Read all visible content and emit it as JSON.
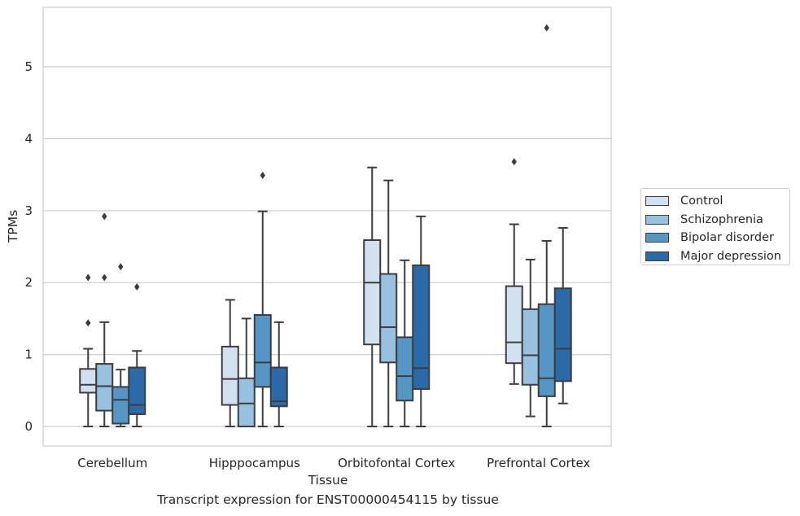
{
  "chart_data": {
    "type": "box",
    "xlabel": "Tissue",
    "ylabel": "TPMs",
    "ylim": [
      -0.27,
      5.85
    ],
    "yticks": [
      0,
      1,
      2,
      3,
      4,
      5
    ],
    "grid": "horizontal",
    "legend_position": "outside-right",
    "categories": [
      "Cerebellum",
      "Hipppocampus",
      "Orbitofontal Cortex",
      "Prefrontal Cortex"
    ],
    "series": [
      {
        "name": "Control",
        "color": "#d1e1f0",
        "boxes": [
          {
            "whislo": 0.0,
            "q1": 0.47,
            "med": 0.58,
            "q3": 0.8,
            "whishi": 1.08,
            "fliers": [
              1.44,
              2.07
            ]
          },
          {
            "whislo": 0.0,
            "q1": 0.3,
            "med": 0.66,
            "q3": 1.11,
            "whishi": 1.76,
            "fliers": []
          },
          {
            "whislo": 0.0,
            "q1": 1.14,
            "med": 2.0,
            "q3": 2.59,
            "whishi": 3.6,
            "fliers": []
          },
          {
            "whislo": 0.59,
            "q1": 0.88,
            "med": 1.17,
            "q3": 1.95,
            "whishi": 2.81,
            "fliers": [
              3.68
            ]
          }
        ]
      },
      {
        "name": "Schizophrenia",
        "color": "#97c1de",
        "boxes": [
          {
            "whislo": 0.0,
            "q1": 0.22,
            "med": 0.56,
            "q3": 0.87,
            "whishi": 1.45,
            "fliers": [
              2.07,
              2.92
            ]
          },
          {
            "whislo": 0.0,
            "q1": 0.0,
            "med": 0.32,
            "q3": 0.67,
            "whishi": 1.5,
            "fliers": []
          },
          {
            "whislo": 0.0,
            "q1": 0.89,
            "med": 1.38,
            "q3": 2.12,
            "whishi": 3.42,
            "fliers": []
          },
          {
            "whislo": 0.14,
            "q1": 0.58,
            "med": 0.99,
            "q3": 1.63,
            "whishi": 2.32,
            "fliers": []
          }
        ]
      },
      {
        "name": "Bipolar disorder",
        "color": "#5596c5",
        "boxes": [
          {
            "whislo": 0.0,
            "q1": 0.04,
            "med": 0.37,
            "q3": 0.55,
            "whishi": 0.79,
            "fliers": [
              2.22
            ]
          },
          {
            "whislo": 0.0,
            "q1": 0.55,
            "med": 0.89,
            "q3": 1.55,
            "whishi": 2.99,
            "fliers": [
              3.49
            ]
          },
          {
            "whislo": 0.0,
            "q1": 0.36,
            "med": 0.7,
            "q3": 1.24,
            "whishi": 2.31,
            "fliers": []
          },
          {
            "whislo": 0.0,
            "q1": 0.42,
            "med": 0.67,
            "q3": 1.7,
            "whishi": 2.58,
            "fliers": [
              5.54
            ]
          }
        ]
      },
      {
        "name": "Major depression",
        "color": "#2a6aa8",
        "boxes": [
          {
            "whislo": 0.0,
            "q1": 0.17,
            "med": 0.3,
            "q3": 0.82,
            "whishi": 1.05,
            "fliers": [
              1.94
            ]
          },
          {
            "whislo": 0.0,
            "q1": 0.28,
            "med": 0.35,
            "q3": 0.82,
            "whishi": 1.45,
            "fliers": []
          },
          {
            "whislo": 0.0,
            "q1": 0.52,
            "med": 0.81,
            "q3": 2.24,
            "whishi": 2.92,
            "fliers": []
          },
          {
            "whislo": 0.32,
            "q1": 0.63,
            "med": 1.08,
            "q3": 1.92,
            "whishi": 2.76,
            "fliers": []
          }
        ]
      }
    ]
  },
  "caption": "Transcript expression for ENST00000454115 by tissue"
}
